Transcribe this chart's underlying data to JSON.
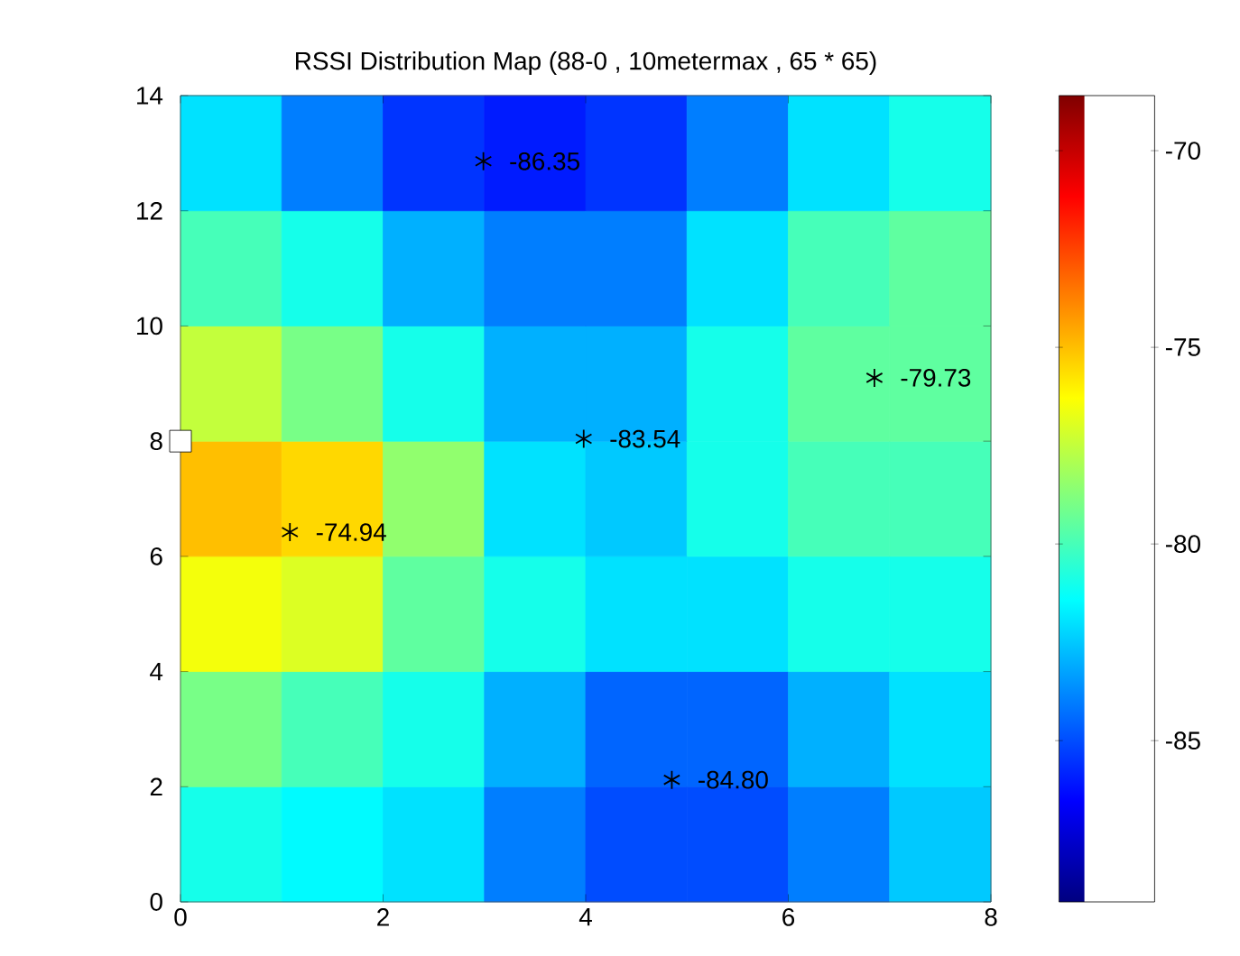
{
  "chart_data": {
    "type": "heatmap",
    "title": "RSSI Distribution Map (88-0 , 10metermax , 65 * 65)",
    "xlim": [
      0,
      8
    ],
    "ylim": [
      0,
      14
    ],
    "xticks": [
      0,
      2,
      4,
      6,
      8
    ],
    "yticks": [
      0,
      2,
      4,
      6,
      8,
      10,
      12,
      14
    ],
    "cells": [
      [
        -82,
        -84,
        -85.5,
        -86,
        -85.5,
        -84,
        -82,
        -81
      ],
      [
        -80,
        -81,
        -83,
        -84,
        -84,
        -82,
        -80,
        -79.5
      ],
      [
        -77.5,
        -79,
        -81,
        -83,
        -83,
        -81,
        -79.5,
        -79.5
      ],
      [
        -75,
        -75.5,
        -78.5,
        -82,
        -82.5,
        -81,
        -80,
        -80
      ],
      [
        -76.5,
        -77,
        -79.5,
        -81,
        -82,
        -82,
        -81,
        -81
      ],
      [
        -79,
        -80,
        -81,
        -83,
        -84.5,
        -84.5,
        -83,
        -82
      ],
      [
        -81,
        -81.5,
        -82,
        -84,
        -85,
        -85,
        -84,
        -82.5
      ]
    ],
    "annotations": [
      {
        "text": "-86.35",
        "x": 2.99,
        "y": 12.86
      },
      {
        "text": "-83.54",
        "x": 3.98,
        "y": 8.04
      },
      {
        "text": "-79.73",
        "x": 6.85,
        "y": 9.1
      },
      {
        "text": "-74.94",
        "x": 1.08,
        "y": 6.42
      },
      {
        "text": "-84.80",
        "x": 4.85,
        "y": 2.12
      }
    ],
    "clim": [
      -89.1,
      -68.6
    ],
    "cticks": [
      -85,
      -80,
      -75,
      -70
    ],
    "series": [
      {
        "type": "scatter",
        "marker": "cross",
        "color": "#000000",
        "x": [
          2.99,
          3.98,
          6.85,
          1.08,
          4.85
        ],
        "values": [
          12.86,
          8.04,
          9.1,
          6.42,
          2.12
        ]
      },
      {
        "type": "scatter",
        "marker": "square",
        "color": "#000000",
        "x": [
          0
        ],
        "values": [
          8
        ]
      }
    ]
  }
}
